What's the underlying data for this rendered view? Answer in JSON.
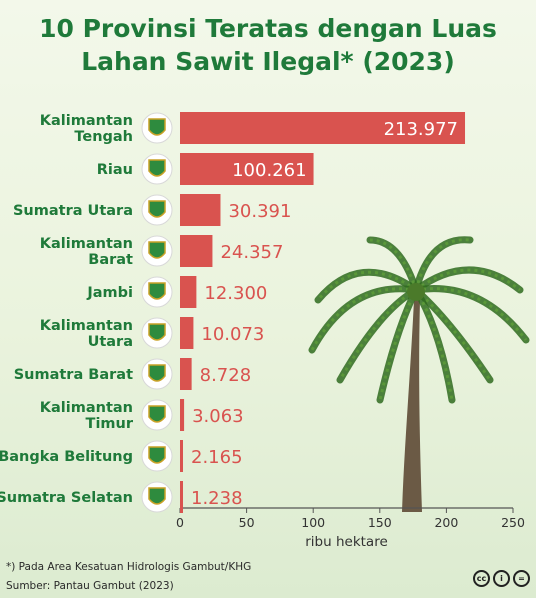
{
  "header": {
    "title_line1": "10 Provinsi Teratas dengan Luas",
    "title_line2": "Lahan Sawit Ilegal* (2023)"
  },
  "footer": {
    "note": "*) Pada Area Kesatuan Hidrologis Gambut/KHG",
    "source": "Sumber: Pantau Gambut (2023)",
    "license_icons": [
      "cc-icon",
      "by-icon",
      "nd-icon"
    ]
  },
  "colors": {
    "bar": "#d9534f",
    "label": "#1f7a3a",
    "value_outside": "#d9534f",
    "value_inside": "#ffffff"
  },
  "chart_data": {
    "type": "bar",
    "orientation": "horizontal",
    "categories": [
      [
        "Kalimantan",
        "Tengah"
      ],
      [
        "Riau"
      ],
      [
        "Sumatra Utara"
      ],
      [
        "Kalimantan",
        "Barat"
      ],
      [
        "Jambi"
      ],
      [
        "Kalimantan",
        "Utara"
      ],
      [
        "Sumatra Barat"
      ],
      [
        "Kalimantan",
        "Timur"
      ],
      [
        "Bangka Belitung"
      ],
      [
        "Sumatra Selatan"
      ]
    ],
    "values": [
      213.977,
      100.261,
      30.391,
      24.357,
      12.3,
      10.073,
      8.728,
      3.063,
      2.165,
      1.238
    ],
    "value_labels": [
      "213.977",
      "100.261",
      "30.391",
      "24.357",
      "12.300",
      "10.073",
      "8.728",
      "3.063",
      "2.165",
      "1.238"
    ],
    "xlabel": "ribu hektare",
    "xlim": [
      0,
      250
    ],
    "xticks": [
      0,
      50,
      100,
      150,
      200,
      250
    ]
  }
}
